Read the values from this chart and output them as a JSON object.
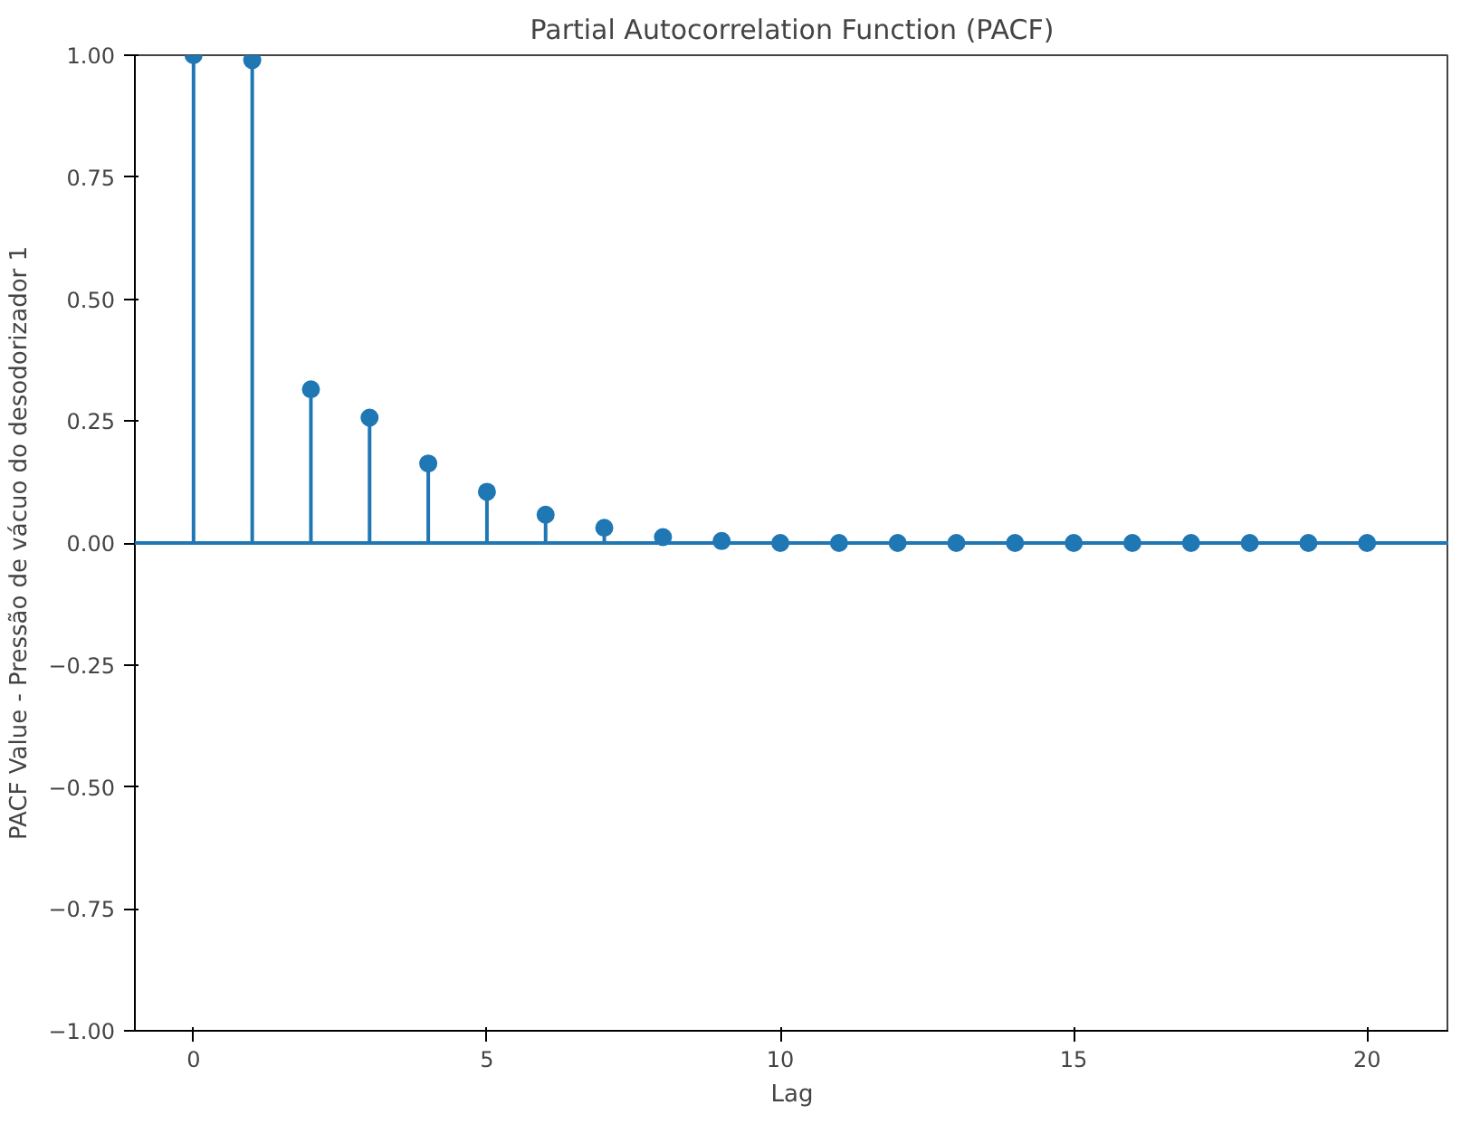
{
  "chart_data": {
    "type": "lollipop",
    "title": "Partial Autocorrelation Function (PACF)",
    "xlabel": "Lag",
    "ylabel": "PACF Value - Pressão de vácuo do desodorizador 1",
    "x": [
      0,
      1,
      2,
      3,
      4,
      5,
      6,
      7,
      8,
      9,
      10,
      11,
      12,
      13,
      14,
      15,
      16,
      17,
      18,
      19,
      20
    ],
    "values": [
      1.0,
      0.99,
      0.315,
      0.257,
      0.163,
      0.105,
      0.058,
      0.031,
      0.012,
      0.004,
      0.0,
      0.0,
      0.0,
      0.0,
      0.0,
      0.0,
      0.0,
      0.0,
      0.0,
      0.0,
      0.0
    ],
    "color": "#1f77b4",
    "marker": "circle",
    "grid": false,
    "xlim": [
      -1,
      21.4
    ],
    "xticks": [
      0,
      5,
      10,
      15,
      20
    ],
    "ylim": [
      -1,
      1
    ],
    "yticks": [
      {
        "value": -1,
        "label": "−1.00"
      },
      {
        "value": -0.75,
        "label": "−0.75"
      },
      {
        "value": -0.5,
        "label": "−0.50"
      },
      {
        "value": -0.25,
        "label": "−0.25"
      },
      {
        "value": 0,
        "label": "0.00"
      },
      {
        "value": 0.25,
        "label": "0.25"
      },
      {
        "value": 0.5,
        "label": "0.50"
      },
      {
        "value": 0.75,
        "label": "0.75"
      },
      {
        "value": 1,
        "label": "1.00"
      }
    ],
    "ref_lines": [
      {
        "axis": "y",
        "value": 0,
        "color": "#1f77b4"
      }
    ]
  }
}
